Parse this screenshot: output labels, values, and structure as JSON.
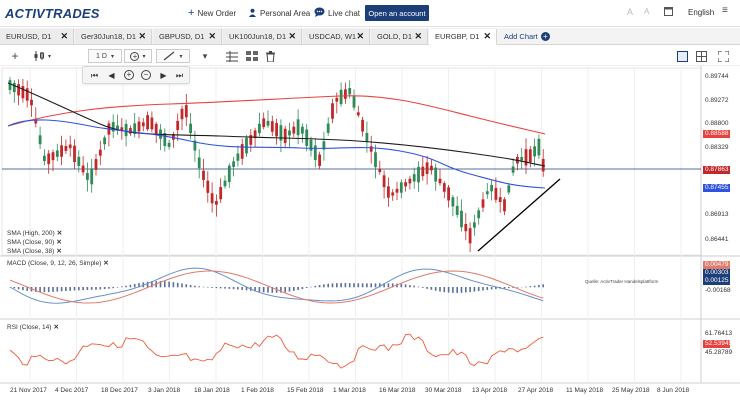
{
  "app": {
    "logo_text": "ACTIVTRADES",
    "new_order": "New Order",
    "personal_area": "Personal Area",
    "live_chat": "Live chat",
    "open_account": "Open an account",
    "language": "English"
  },
  "tabs": [
    {
      "label": "EURUSD, D1"
    },
    {
      "label": "Ger30Jun18, D1"
    },
    {
      "label": "GBPUSD, D1"
    },
    {
      "label": "UK100Jun18, D1"
    },
    {
      "label": "USDCAD, W1"
    },
    {
      "label": "GOLD, D1"
    },
    {
      "label": "EURGBP, D1",
      "active": true
    }
  ],
  "add_chart": "Add Chart",
  "toolbar": {
    "timeframe": "1 D"
  },
  "indicators": {
    "sma_high_200": "SMA (High, 200)",
    "sma_close_90": "SMA (Close, 90)",
    "sma_close_38": "SMA (Close, 38)",
    "macd": "MACD (Close, 9, 12, 26, Simple)",
    "rsi": "RSI (Close, 14)",
    "watermark": "Quelle: ActivTrader Handelsplattform"
  },
  "price_axis": [
    "0.89744",
    "0.89272",
    "0.88800",
    "0.88329",
    "0.87857",
    "0.87385",
    "0.86913",
    "0.86441"
  ],
  "price_tags": {
    "sma200": "0.88588",
    "last": "0.87863",
    "sma38": "0.87455"
  },
  "macd_axis": {
    "top": "0.00479",
    "v1": "0.00303",
    "v2": "0.00125",
    "bottom": "-0.00168"
  },
  "rsi_axis": {
    "top": "61.76413",
    "current": "52.53945",
    "bottom": "45.28789"
  },
  "date_axis": [
    "21 Nov 2017",
    "4 Dec 2017",
    "18 Dec 2017",
    "3 Jan 2018",
    "18 Jan 2018",
    "1 Feb 2018",
    "15 Feb 2018",
    "1 Mar 2018",
    "16 Mar 2018",
    "30 Mar 2018",
    "13 Apr 2018",
    "27 Apr 2018",
    "11 May 2018",
    "25 May 2018",
    "8 Jun 2018"
  ],
  "colors": {
    "brand": "#1c3f7a",
    "bull": "#2e8b57",
    "bear": "#c0282a",
    "sma200": "#e8423f",
    "sma90": "#1a1a1a",
    "sma38": "#2f52e0",
    "macd_line": "#6a8fc8",
    "macd_signal": "#e07a6a",
    "rsi": "#f05a3a"
  }
}
